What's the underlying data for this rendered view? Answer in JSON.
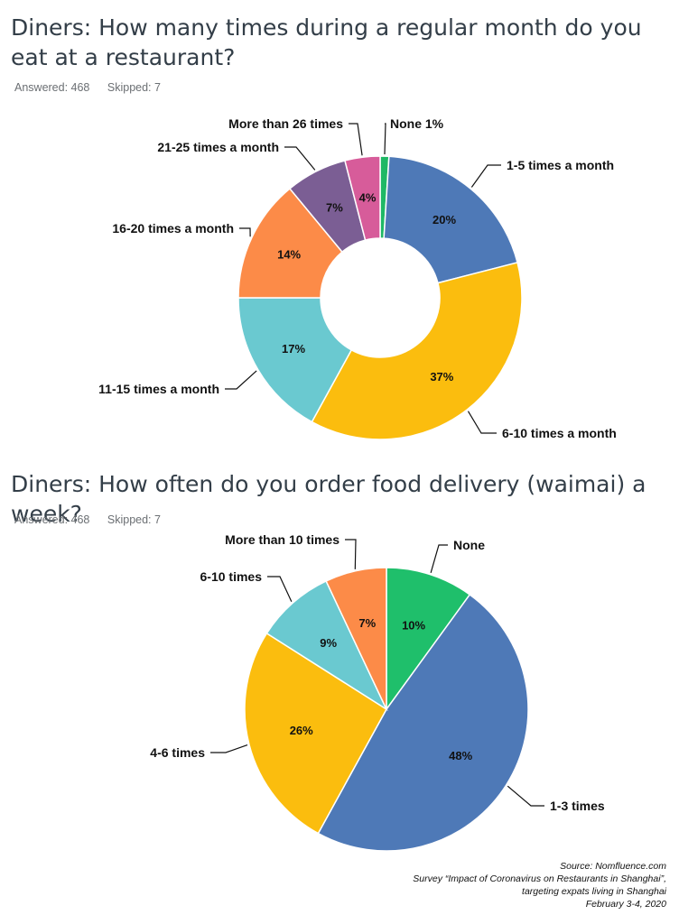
{
  "chart_data": [
    {
      "type": "pie",
      "donut": true,
      "title": "Diners: How many times during a regular month do you eat at a restaurant?",
      "answered": "Answered: 468",
      "skipped": "Skipped: 7",
      "slices": [
        {
          "label": "None  1%",
          "value": 1,
          "value_label": "",
          "color": "#1fb865"
        },
        {
          "label": "1-5 times a month",
          "value": 20,
          "value_label": "20%",
          "color": "#4e79b7"
        },
        {
          "label": "6-10 times a month",
          "value": 37,
          "value_label": "37%",
          "color": "#fbbd0e"
        },
        {
          "label": "11-15 times a month",
          "value": 17,
          "value_label": "17%",
          "color": "#6ac9d0"
        },
        {
          "label": "16-20 times a month",
          "value": 14,
          "value_label": "14%",
          "color": "#fc8b48"
        },
        {
          "label": "21-25 times a month",
          "value": 7,
          "value_label": "7%",
          "color": "#7b5e94"
        },
        {
          "label": "More than 26 times",
          "value": 4,
          "value_label": "4%",
          "color": "#d75c9a"
        }
      ]
    },
    {
      "type": "pie",
      "donut": false,
      "title": "Diners: How often do you order food delivery (waimai) a week?",
      "answered": "Answered: 468",
      "skipped": "Skipped: 7",
      "slices": [
        {
          "label": "None",
          "value": 10,
          "value_label": "10%",
          "color": "#1fbf6b"
        },
        {
          "label": "1-3 times",
          "value": 48,
          "value_label": "48%",
          "color": "#4e79b7"
        },
        {
          "label": "4-6 times",
          "value": 26,
          "value_label": "26%",
          "color": "#fbbd0e"
        },
        {
          "label": "6-10 times",
          "value": 9,
          "value_label": "9%",
          "color": "#6ac9d0"
        },
        {
          "label": "More than 10 times",
          "value": 7,
          "value_label": "7%",
          "color": "#fc8b48"
        }
      ]
    }
  ],
  "source": {
    "line1": "Source: Nomfluence.com",
    "line2": "Survey “Impact of Coronavirus on Restaurants in Shanghai”,",
    "line3": "targeting expats living in Shanghai",
    "line4": "February 3-4, 2020"
  }
}
